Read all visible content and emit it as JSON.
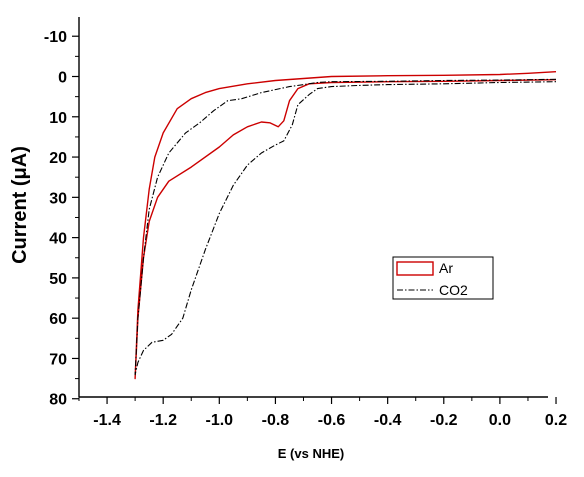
{
  "chart_data": {
    "type": "line",
    "title": "",
    "xlabel": "E (vs NHE)",
    "ylabel": "Current  (μA)",
    "xlim": [
      -1.5,
      0.2
    ],
    "ylim": [
      80,
      -15
    ],
    "y_inverted": true,
    "grid": false,
    "legend_position": "right",
    "x_ticks": [
      -1.4,
      -1.2,
      -1.0,
      -0.8,
      -0.6,
      -0.4,
      -0.2,
      0.0,
      0.2
    ],
    "x_tick_labels": [
      "-1.4",
      "-1.2",
      "-1.0",
      "-0.8",
      "-0.6",
      "-0.4",
      "-0.2",
      "0.0",
      "0.2"
    ],
    "y_ticks": [
      -10,
      0,
      10,
      20,
      30,
      40,
      50,
      60,
      70,
      80
    ],
    "y_tick_labels": [
      "-10",
      "0",
      "10",
      "20",
      "30",
      "40",
      "50",
      "60",
      "70",
      "80"
    ],
    "series": [
      {
        "name": "Ar",
        "color": "#cc0000",
        "style": "solid",
        "points": [
          [
            0.2,
            -1.2
          ],
          [
            0.1,
            -0.8
          ],
          [
            0.0,
            -0.5
          ],
          [
            -0.2,
            -0.3
          ],
          [
            -0.4,
            -0.2
          ],
          [
            -0.6,
            0.0
          ],
          [
            -0.7,
            0.5
          ],
          [
            -0.8,
            1.0
          ],
          [
            -0.9,
            1.8
          ],
          [
            -1.0,
            3.0
          ],
          [
            -1.05,
            4.0
          ],
          [
            -1.1,
            5.5
          ],
          [
            -1.15,
            8.0
          ],
          [
            -1.2,
            14.0
          ],
          [
            -1.23,
            20.0
          ],
          [
            -1.25,
            28.0
          ],
          [
            -1.27,
            40.0
          ],
          [
            -1.29,
            58.0
          ],
          [
            -1.3,
            75.0
          ],
          [
            -1.29,
            60.0
          ],
          [
            -1.27,
            45.0
          ],
          [
            -1.25,
            36.0
          ],
          [
            -1.22,
            30.0
          ],
          [
            -1.18,
            26.0
          ],
          [
            -1.1,
            22.5
          ],
          [
            -1.0,
            17.5
          ],
          [
            -0.95,
            14.5
          ],
          [
            -0.9,
            12.5
          ],
          [
            -0.85,
            11.3
          ],
          [
            -0.82,
            11.5
          ],
          [
            -0.79,
            12.5
          ],
          [
            -0.77,
            11.0
          ],
          [
            -0.75,
            6.0
          ],
          [
            -0.72,
            3.0
          ],
          [
            -0.68,
            1.8
          ],
          [
            -0.6,
            1.5
          ],
          [
            -0.4,
            1.3
          ],
          [
            -0.2,
            1.2
          ],
          [
            0.0,
            1.0
          ],
          [
            0.2,
            0.8
          ]
        ]
      },
      {
        "name": "CO2",
        "color": "#000000",
        "style": "dash-dot",
        "points": [
          [
            0.2,
            0.7
          ],
          [
            0.0,
            0.9
          ],
          [
            -0.2,
            1.0
          ],
          [
            -0.4,
            1.2
          ],
          [
            -0.6,
            1.3
          ],
          [
            -0.65,
            1.5
          ],
          [
            -0.7,
            2.0
          ],
          [
            -0.75,
            2.5
          ],
          [
            -0.85,
            4.0
          ],
          [
            -0.92,
            5.5
          ],
          [
            -0.97,
            6.0
          ],
          [
            -1.02,
            8.5
          ],
          [
            -1.07,
            11.5
          ],
          [
            -1.12,
            14.0
          ],
          [
            -1.18,
            19.0
          ],
          [
            -1.22,
            25.0
          ],
          [
            -1.25,
            33.0
          ],
          [
            -1.27,
            45.0
          ],
          [
            -1.29,
            60.0
          ],
          [
            -1.3,
            74.0
          ],
          [
            -1.29,
            71.0
          ],
          [
            -1.27,
            68.0
          ],
          [
            -1.24,
            66.0
          ],
          [
            -1.2,
            65.5
          ],
          [
            -1.17,
            64.0
          ],
          [
            -1.13,
            60.0
          ],
          [
            -1.1,
            53.0
          ],
          [
            -1.05,
            43.0
          ],
          [
            -1.0,
            34.0
          ],
          [
            -0.95,
            27.0
          ],
          [
            -0.9,
            22.0
          ],
          [
            -0.85,
            19.0
          ],
          [
            -0.8,
            17.0
          ],
          [
            -0.77,
            16.0
          ],
          [
            -0.74,
            12.0
          ],
          [
            -0.72,
            7.0
          ],
          [
            -0.68,
            4.5
          ],
          [
            -0.65,
            3.0
          ],
          [
            -0.6,
            2.5
          ],
          [
            -0.5,
            2.2
          ],
          [
            -0.4,
            2.0
          ],
          [
            -0.2,
            1.8
          ],
          [
            0.0,
            1.5
          ],
          [
            0.2,
            1.3
          ]
        ]
      }
    ],
    "legend": [
      {
        "label": "Ar",
        "color": "#cc0000"
      },
      {
        "label": "CO2",
        "color": "#000000"
      }
    ]
  }
}
